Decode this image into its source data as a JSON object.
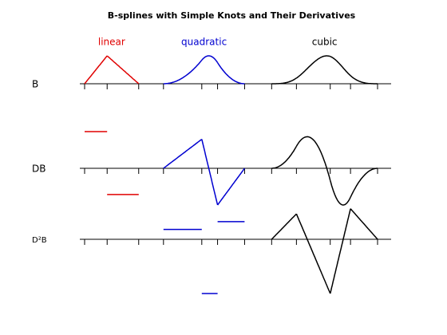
{
  "title": "B-splines with Simple Knots and Their Derivatives",
  "xlim": [
    0,
    13
  ],
  "rows": [
    {
      "label": "B"
    },
    {
      "label": "DB"
    },
    {
      "label": "D²B"
    }
  ],
  "columns": [
    {
      "label": "linear",
      "color": "#e00000",
      "knots": [
        0,
        1,
        2.4
      ]
    },
    {
      "label": "quadratic",
      "color": "#0000d0",
      "knots": [
        3.5,
        5.2,
        5.9,
        7.1
      ]
    },
    {
      "label": "cubic",
      "color": "#000000",
      "knots": [
        8.3,
        9.4,
        10.9,
        11.8,
        13
      ]
    }
  ]
}
